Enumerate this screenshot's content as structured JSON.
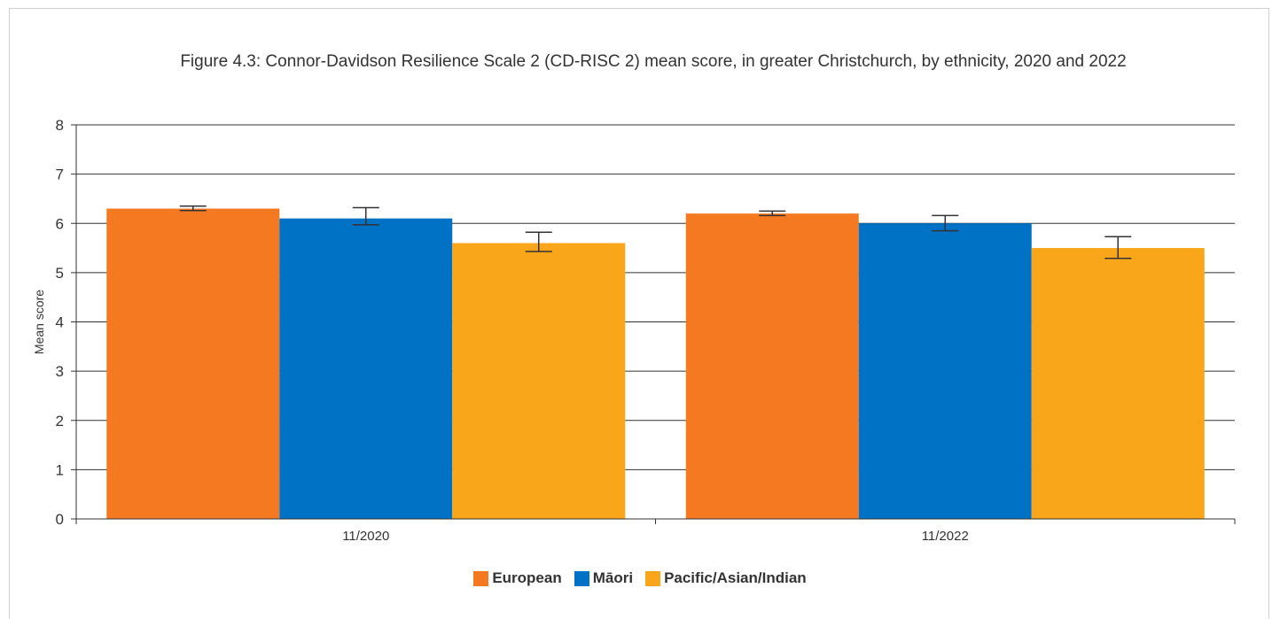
{
  "chart_data": {
    "type": "bar",
    "title": "Figure 4.3: Connor-Davidson Resilience Scale 2 (CD-RISC 2) mean score, in greater Christchurch, by ethnicity, 2020 and 2022",
    "xlabel": "",
    "ylabel": "Mean score",
    "ylim": [
      0,
      8
    ],
    "yticks": [
      "0",
      "1",
      "2",
      "3",
      "4",
      "5",
      "6",
      "7",
      "8"
    ],
    "categories": [
      "11/2020",
      "11/2022"
    ],
    "grid": true,
    "legend_position": "bottom",
    "series": [
      {
        "name": "European",
        "color": "#f47920",
        "values": [
          6.3,
          6.2
        ],
        "error_low": [
          6.26,
          6.16
        ],
        "error_high": [
          6.35,
          6.25
        ]
      },
      {
        "name": "Māori",
        "color": "#0072c6",
        "values": [
          6.1,
          6.0
        ],
        "error_low": [
          5.97,
          5.85
        ],
        "error_high": [
          6.32,
          6.16
        ]
      },
      {
        "name": "Pacific/Asian/Indian",
        "color": "#f9a61a",
        "values": [
          5.6,
          5.5
        ],
        "error_low": [
          5.43,
          5.29
        ],
        "error_high": [
          5.82,
          5.73
        ]
      }
    ]
  }
}
